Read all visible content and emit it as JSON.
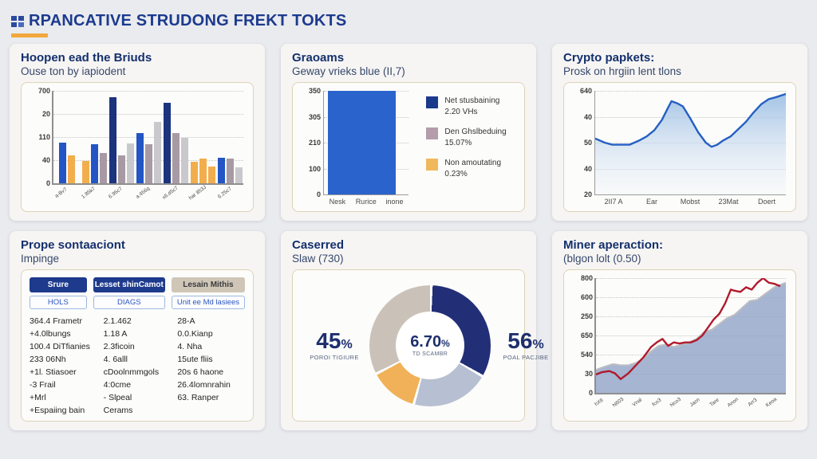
{
  "page": {
    "title": "RPANCATIVE STRUDONG FREKT TOKTS",
    "accent_color": "#f2a83c"
  },
  "panels": [
    {
      "title": "Hoopen ead the Briuds",
      "subtitle": "Ouse ton by iapiodent"
    },
    {
      "title": "Graoams",
      "subtitle": "Geway vrieks blue (II,7)"
    },
    {
      "title": "Crypto papkets:",
      "subtitle": "Prosk on hrgiin lent tlons"
    },
    {
      "title": "Prope sontaaciont",
      "subtitle": "Impinge"
    },
    {
      "title": "Caserred",
      "subtitle": "Slaw (730)"
    },
    {
      "title": "Miner aperaction:",
      "subtitle": "(blgon lolt (0.50)"
    }
  ],
  "chart_data": [
    {
      "type": "bar",
      "title": "Hoopen ead the Briuds",
      "y_tick_labels": [
        "700",
        "20",
        "110",
        "40",
        "0"
      ],
      "x_tick_labels": [
        "a-Bv7",
        "1.85k7",
        "6.95c7",
        "a.456q",
        "x6.d5c7",
        "har 853J",
        "6.25c7"
      ],
      "value_unit": "percent_of_plot_height",
      "groups": [
        [
          {
            "color": "#2355c4",
            "value": 44
          },
          {
            "color": "#f2ae4c",
            "value": 30
          }
        ],
        [
          {
            "color": "#f2ae4c",
            "value": 24
          },
          {
            "color": "#2355c4",
            "value": 42
          },
          {
            "color": "#a89aa4",
            "value": 33
          }
        ],
        [
          {
            "color": "#1c337e",
            "value": 93
          },
          {
            "color": "#a89aa4",
            "value": 30
          },
          {
            "color": "#c9c9cd",
            "value": 43
          }
        ],
        [
          {
            "color": "#2355c4",
            "value": 54
          },
          {
            "color": "#a89aa4",
            "value": 42
          },
          {
            "color": "#c9c9cd",
            "value": 66
          }
        ],
        [
          {
            "color": "#1c337e",
            "value": 87
          },
          {
            "color": "#a89aa4",
            "value": 54
          },
          {
            "color": "#c9c9cd",
            "value": 49
          }
        ],
        [
          {
            "color": "#f2ae4c",
            "value": 23
          },
          {
            "color": "#f2ae4c",
            "value": 27
          },
          {
            "color": "#f2ae4c",
            "value": 18
          }
        ],
        [
          {
            "color": "#2355c4",
            "value": 28
          },
          {
            "color": "#a89aa4",
            "value": 27
          },
          {
            "color": "#c9c9cd",
            "value": 17
          }
        ]
      ]
    },
    {
      "type": "bar",
      "title": "Graoams",
      "y_tick_labels": [
        "350",
        "305",
        "210",
        "100",
        "0"
      ],
      "x_tick_labels": [
        "Nesk",
        "Rurice",
        "inone"
      ],
      "bars": [
        {
          "color": "#2a63cc",
          "value": 100
        }
      ],
      "legend": [
        {
          "color": "#1c3a8c",
          "label": "Net stusbaining",
          "value": "2.20 VHs"
        },
        {
          "color": "#b49cab",
          "label": "Den Ghslbeduing",
          "value": "15.07%"
        },
        {
          "color": "#f0b85c",
          "label": "Non amoutating",
          "value": "0.23%"
        }
      ]
    },
    {
      "type": "area",
      "title": "Crypto papkets:",
      "y_tick_labels": [
        "640",
        "40",
        "50",
        "40",
        "20"
      ],
      "x_tick_labels": [
        "2II7 A",
        "Ear",
        "Mobst",
        "23Mat",
        "Doert"
      ],
      "line_color": "#2560c2",
      "points": [
        [
          0,
          54
        ],
        [
          5,
          50
        ],
        [
          9,
          48
        ],
        [
          14,
          48
        ],
        [
          18,
          48
        ],
        [
          23,
          52
        ],
        [
          27,
          56
        ],
        [
          31,
          62
        ],
        [
          35,
          72
        ],
        [
          38,
          83
        ],
        [
          40,
          90
        ],
        [
          43,
          88
        ],
        [
          46,
          85
        ],
        [
          50,
          73
        ],
        [
          54,
          60
        ],
        [
          58,
          50
        ],
        [
          61,
          46
        ],
        [
          64,
          48
        ],
        [
          67,
          52
        ],
        [
          71,
          56
        ],
        [
          75,
          63
        ],
        [
          79,
          70
        ],
        [
          83,
          79
        ],
        [
          87,
          87
        ],
        [
          91,
          92
        ],
        [
          95,
          94
        ],
        [
          100,
          97
        ]
      ]
    },
    {
      "type": "pie",
      "title": "Caserred",
      "segments": [
        {
          "color": "#222f77",
          "pct": 33
        },
        {
          "color": "#b7c0d2",
          "pct": 21
        },
        {
          "color": "#f0b158",
          "pct": 13
        },
        {
          "color": "#cac2b8",
          "pct": 33
        }
      ],
      "stats": {
        "left": {
          "value": "45",
          "suffix": "%",
          "label": "POROI TIGIURE"
        },
        "center": {
          "value": "6.70",
          "suffix": "%",
          "label": "TD SCAMBR"
        },
        "right": {
          "value": "56",
          "suffix": "%",
          "label": "POAL PACJIBE"
        }
      }
    },
    {
      "type": "area",
      "title": "Miner aperaction:",
      "y_tick_labels": [
        "800",
        "600",
        "250",
        "650",
        "540",
        "30",
        "0"
      ],
      "x_tick_labels": [
        "hXtl",
        "N603",
        "Vnal",
        "fco3",
        "Nco3",
        "Jacn",
        "Tare",
        "Anon",
        "Arr3",
        "Keoa"
      ],
      "area_color": "#8fa3c8",
      "area_edge_color": "#b9bdc3",
      "line_color": "#b11a2c",
      "area_points": [
        [
          0,
          20
        ],
        [
          5,
          23
        ],
        [
          9,
          25
        ],
        [
          13,
          24
        ],
        [
          17,
          24
        ],
        [
          21,
          26
        ],
        [
          25,
          30
        ],
        [
          29,
          36
        ],
        [
          33,
          41
        ],
        [
          37,
          42
        ],
        [
          41,
          40
        ],
        [
          45,
          42
        ],
        [
          49,
          44
        ],
        [
          53,
          47
        ],
        [
          57,
          53
        ],
        [
          61,
          55
        ],
        [
          65,
          60
        ],
        [
          69,
          65
        ],
        [
          73,
          68
        ],
        [
          77,
          74
        ],
        [
          81,
          80
        ],
        [
          85,
          81
        ],
        [
          89,
          86
        ],
        [
          94,
          92
        ],
        [
          100,
          96
        ]
      ],
      "line_points": [
        [
          0,
          16
        ],
        [
          3,
          18
        ],
        [
          7,
          19
        ],
        [
          10,
          17
        ],
        [
          13,
          12
        ],
        [
          17,
          17
        ],
        [
          21,
          24
        ],
        [
          25,
          31
        ],
        [
          29,
          40
        ],
        [
          32,
          44
        ],
        [
          35,
          47
        ],
        [
          38,
          41
        ],
        [
          41,
          44
        ],
        [
          44,
          43
        ],
        [
          47,
          44
        ],
        [
          50,
          44
        ],
        [
          53,
          46
        ],
        [
          56,
          50
        ],
        [
          59,
          57
        ],
        [
          62,
          64
        ],
        [
          65,
          69
        ],
        [
          68,
          78
        ],
        [
          71,
          90
        ],
        [
          73,
          89
        ],
        [
          76,
          88
        ],
        [
          79,
          92
        ],
        [
          82,
          90
        ],
        [
          85,
          96
        ],
        [
          88,
          100
        ],
        [
          91,
          96
        ],
        [
          94,
          95
        ],
        [
          97,
          93
        ]
      ]
    }
  ],
  "table": {
    "headers": [
      {
        "label": "Srure",
        "variant": "navy"
      },
      {
        "label": "Lesset shinCamot",
        "variant": "navy"
      },
      {
        "label": "Lesain Mithis",
        "variant": "tan"
      }
    ],
    "subheaders": [
      "HOLS",
      "DIAGS",
      "Unit ee Md lasiees"
    ],
    "rows": [
      [
        "364.4 Frametr",
        "2.1.462",
        "28-A"
      ],
      [
        "+4.0lbungs",
        "1.18 A",
        "0.0.Kianp"
      ],
      [
        "100.4 DiTfianies",
        "2.3ficoin",
        "4. Nha"
      ],
      [
        "233 06Nh",
        "4. 6alll",
        "15ute fliis"
      ],
      [
        "+1l. Stiasoer",
        "cDoolnmmgols",
        "20s 6 haone"
      ],
      [
        "-3 Frail",
        "4:0cme",
        "26.4lomnrahin"
      ],
      [
        "+Mrl",
        "- Slpeal",
        "63. Ranper"
      ],
      [
        "+Espaiing bain",
        "Cerams",
        ""
      ]
    ]
  }
}
